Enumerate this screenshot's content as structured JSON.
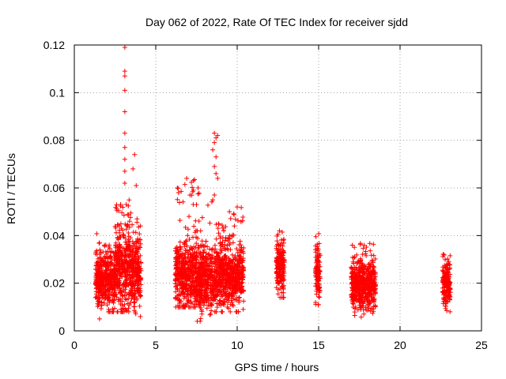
{
  "chart_data": {
    "type": "scatter",
    "title": "Day 062 of 2022, Rate Of TEC Index for receiver sjdd",
    "xlabel": "GPS time / hours",
    "ylabel": "ROTI / TECUs",
    "xlim": [
      0,
      25
    ],
    "ylim": [
      0,
      0.12
    ],
    "xticks": [
      0,
      5,
      10,
      15,
      20,
      25
    ],
    "yticks": [
      0,
      0.02,
      0.04,
      0.06,
      0.08,
      0.1,
      0.12
    ],
    "xtick_labels": [
      "0",
      "5",
      "10",
      "15",
      "20",
      "25"
    ],
    "ytick_labels": [
      "0",
      "0.02",
      "0.04",
      "0.06",
      "0.08",
      "0.1",
      "0.12"
    ],
    "grid": true,
    "grid_style": "dotted",
    "marker": "+",
    "marker_color": "#ff0000",
    "clusters": [
      {
        "x_range": [
          1.3,
          1.9
        ],
        "y_mean": 0.022,
        "y_spread": 0.006,
        "y_min": 0.005,
        "y_max": 0.042
      },
      {
        "x_range": [
          1.9,
          2.5
        ],
        "y_mean": 0.021,
        "y_spread": 0.006,
        "y_min": 0.008,
        "y_max": 0.036
      },
      {
        "x_range": [
          2.5,
          3.4
        ],
        "y_mean": 0.026,
        "y_spread": 0.009,
        "y_min": 0.008,
        "y_max": 0.055
      },
      {
        "x_range": [
          3.4,
          4.1
        ],
        "y_mean": 0.024,
        "y_spread": 0.008,
        "y_min": 0.006,
        "y_max": 0.055
      },
      {
        "x_range": [
          6.2,
          7.5
        ],
        "y_mean": 0.023,
        "y_spread": 0.007,
        "y_min": 0.01,
        "y_max": 0.064
      },
      {
        "x_range": [
          7.5,
          8.6
        ],
        "y_mean": 0.021,
        "y_spread": 0.007,
        "y_min": 0.004,
        "y_max": 0.06
      },
      {
        "x_range": [
          8.6,
          9.5
        ],
        "y_mean": 0.022,
        "y_spread": 0.007,
        "y_min": 0.008,
        "y_max": 0.045
      },
      {
        "x_range": [
          9.5,
          10.4
        ],
        "y_mean": 0.022,
        "y_spread": 0.006,
        "y_min": 0.008,
        "y_max": 0.052
      },
      {
        "x_range": [
          12.4,
          12.9
        ],
        "y_mean": 0.026,
        "y_spread": 0.006,
        "y_min": 0.014,
        "y_max": 0.042
      },
      {
        "x_range": [
          14.8,
          15.1
        ],
        "y_mean": 0.025,
        "y_spread": 0.006,
        "y_min": 0.011,
        "y_max": 0.043
      },
      {
        "x_range": [
          17.0,
          18.5
        ],
        "y_mean": 0.019,
        "y_spread": 0.005,
        "y_min": 0.005,
        "y_max": 0.038
      },
      {
        "x_range": [
          22.6,
          23.1
        ],
        "y_mean": 0.019,
        "y_spread": 0.005,
        "y_min": 0.008,
        "y_max": 0.035
      }
    ],
    "outliers": [
      [
        3.1,
        0.119
      ],
      [
        3.1,
        0.109
      ],
      [
        3.1,
        0.107
      ],
      [
        3.1,
        0.101
      ],
      [
        3.1,
        0.092
      ],
      [
        3.1,
        0.083
      ],
      [
        3.1,
        0.077
      ],
      [
        3.1,
        0.072
      ],
      [
        3.1,
        0.067
      ],
      [
        3.7,
        0.074
      ],
      [
        3.6,
        0.068
      ],
      [
        3.8,
        0.061
      ],
      [
        3.1,
        0.062
      ],
      [
        8.6,
        0.083
      ],
      [
        8.8,
        0.082
      ],
      [
        8.7,
        0.081
      ],
      [
        8.6,
        0.079
      ],
      [
        8.5,
        0.076
      ],
      [
        8.7,
        0.073
      ],
      [
        8.6,
        0.069
      ],
      [
        8.7,
        0.066
      ],
      [
        8.8,
        0.064
      ],
      [
        8.6,
        0.057
      ],
      [
        8.5,
        0.055
      ],
      [
        6.9,
        0.064
      ],
      [
        6.4,
        0.058
      ],
      [
        7.1,
        0.057
      ],
      [
        7.6,
        0.06
      ],
      [
        7.5,
        0.053
      ],
      [
        10.0,
        0.052
      ]
    ]
  }
}
